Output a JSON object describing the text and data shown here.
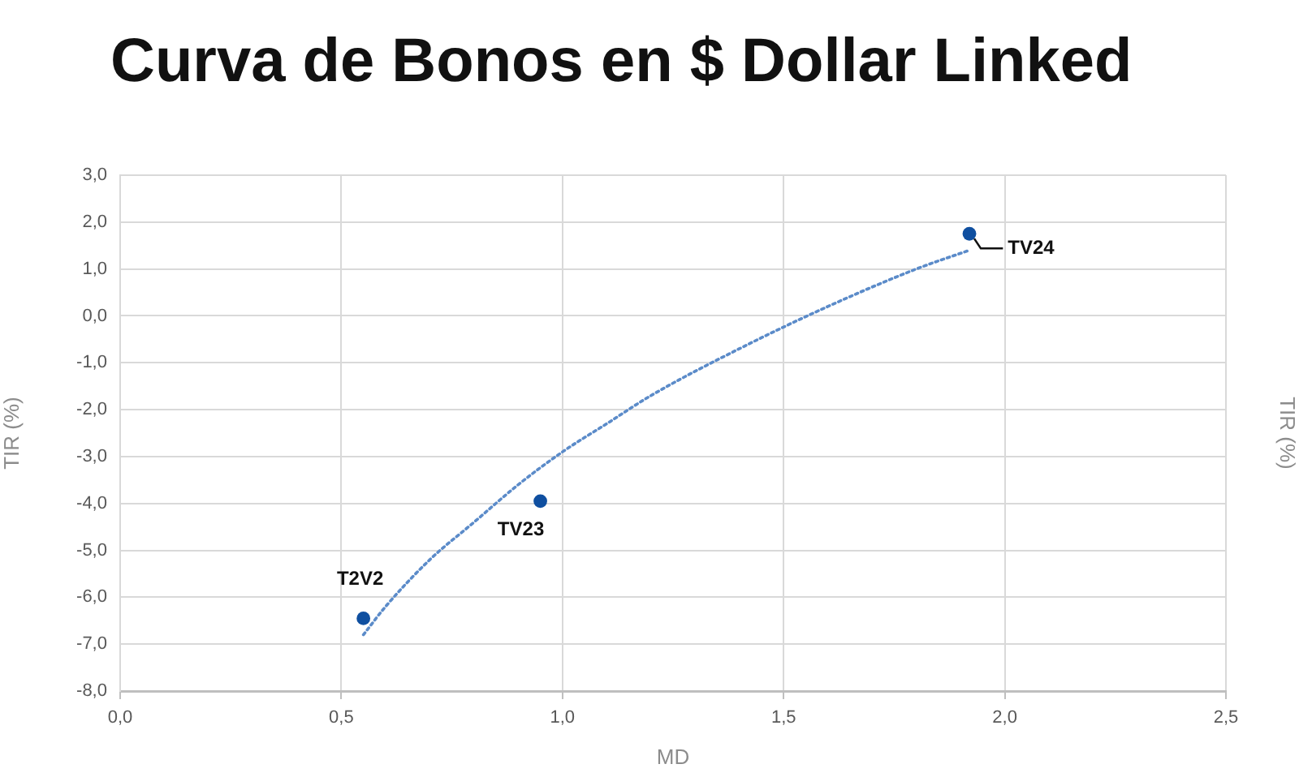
{
  "chart_data": {
    "type": "scatter",
    "title": "Curva de Bonos en $ Dollar Linked",
    "xlabel": "MD",
    "ylabel": "TIR (%)",
    "y2label": "TIR (%)",
    "series": [
      {
        "color": "#0f4fa0",
        "marker": "circle",
        "x": [
          0.55,
          0.95,
          1.92
        ],
        "values": [
          -6.45,
          -3.95,
          1.75
        ]
      },
      {
        "type": "line",
        "color": "#5b8bc9",
        "marker": "none",
        "line_style": "dotted",
        "x": [
          0.55,
          0.6,
          0.7,
          0.8,
          0.9,
          1.0,
          1.1,
          1.2,
          1.4,
          1.6,
          1.8,
          1.92
        ],
        "values": [
          -6.8,
          -6.2,
          -5.2,
          -4.4,
          -3.6,
          -2.9,
          -2.3,
          -1.7,
          -0.7,
          0.2,
          1.0,
          1.4
        ]
      }
    ],
    "xlim": [
      0,
      2.5
    ],
    "xticks": [
      {
        "value": 0,
        "label": "0,0"
      },
      {
        "value": 0.5,
        "label": "0,5"
      },
      {
        "value": 1,
        "label": "1,0"
      },
      {
        "value": 1.5,
        "label": "1,5"
      },
      {
        "value": 2,
        "label": "2,0"
      },
      {
        "value": 2.5,
        "label": "2,5"
      }
    ],
    "ylim": [
      -8,
      3
    ],
    "yticks": [
      {
        "value": -8,
        "label": "-8,0"
      },
      {
        "value": -7,
        "label": "-7,0"
      },
      {
        "value": -6,
        "label": "-6,0"
      },
      {
        "value": -5,
        "label": "-5,0"
      },
      {
        "value": -4,
        "label": "-4,0"
      },
      {
        "value": -3,
        "label": "-3,0"
      },
      {
        "value": -2,
        "label": "-2,0"
      },
      {
        "value": -1,
        "label": "-1,0"
      },
      {
        "value": 0,
        "label": "0,0"
      },
      {
        "value": 1,
        "label": "1,0"
      },
      {
        "value": 2,
        "label": "2,0"
      },
      {
        "value": 3,
        "label": "3,0"
      }
    ],
    "grid": true,
    "annotations": [
      {
        "text": "T2V2",
        "x": 0.55,
        "y": -6.45
      },
      {
        "text": "TV23",
        "x": 0.95,
        "y": -3.95
      },
      {
        "text": "TV24",
        "x": 1.92,
        "y": 1.75
      }
    ]
  }
}
